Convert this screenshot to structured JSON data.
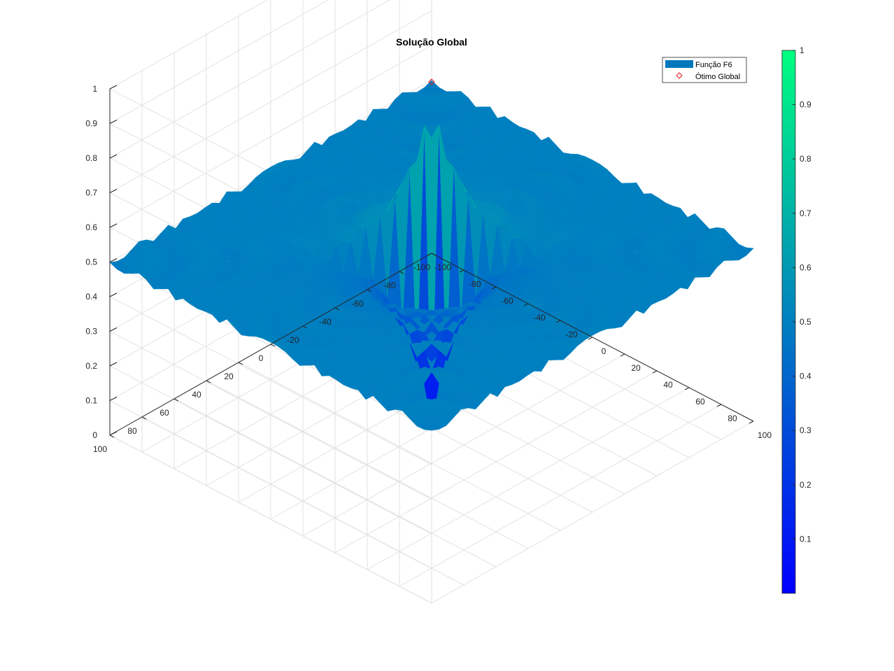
{
  "chart_data": {
    "type": "surface",
    "title": "Solução Global",
    "xlabel": "",
    "ylabel": "",
    "zlabel": "",
    "x_ticks": [
      -100,
      -80,
      -60,
      -40,
      -20,
      0,
      20,
      40,
      60,
      80,
      100
    ],
    "y_ticks": [
      -100,
      -80,
      -60,
      -40,
      -20,
      0,
      20,
      40,
      60,
      80,
      100
    ],
    "z_ticks": [
      0,
      0.1,
      0.2,
      0.3,
      0.4,
      0.5,
      0.6,
      0.7,
      0.8,
      0.9,
      1
    ],
    "xlim": [
      -100,
      100
    ],
    "ylim": [
      -100,
      100
    ],
    "zlim": [
      0,
      1
    ],
    "grid": true,
    "colormap": "winter",
    "colormap_endpoints": [
      "#0000ff",
      "#00ff80"
    ],
    "surface_function": "schaffer-F6 style rings around center, z ≈ 0.5 at domain edges, rising to 1 near the center with a downward spike toward 0",
    "surface_profile": {
      "edge_value": 0.5,
      "peak_value": 1.0,
      "trough_value": 0.0,
      "peak_location": [
        0,
        0
      ]
    },
    "series": [
      {
        "name": "Função F6",
        "kind": "surface"
      },
      {
        "name": "Ótimo Global",
        "kind": "marker",
        "marker": "diamond",
        "color": "#e31a1c",
        "x": 0,
        "y": 0,
        "z": 1
      }
    ],
    "legend": {
      "placement": "top-right",
      "entries": [
        {
          "label": "Função F6",
          "swatch_color": "#0077bb"
        },
        {
          "label": "Ótimo Global",
          "swatch_color": "#e31a1c"
        }
      ]
    },
    "colorbar": {
      "placement": "right",
      "ticks": [
        0.1,
        0.2,
        0.3,
        0.4,
        0.5,
        0.6,
        0.7,
        0.8,
        0.9,
        1
      ],
      "range": [
        0,
        1
      ]
    }
  }
}
